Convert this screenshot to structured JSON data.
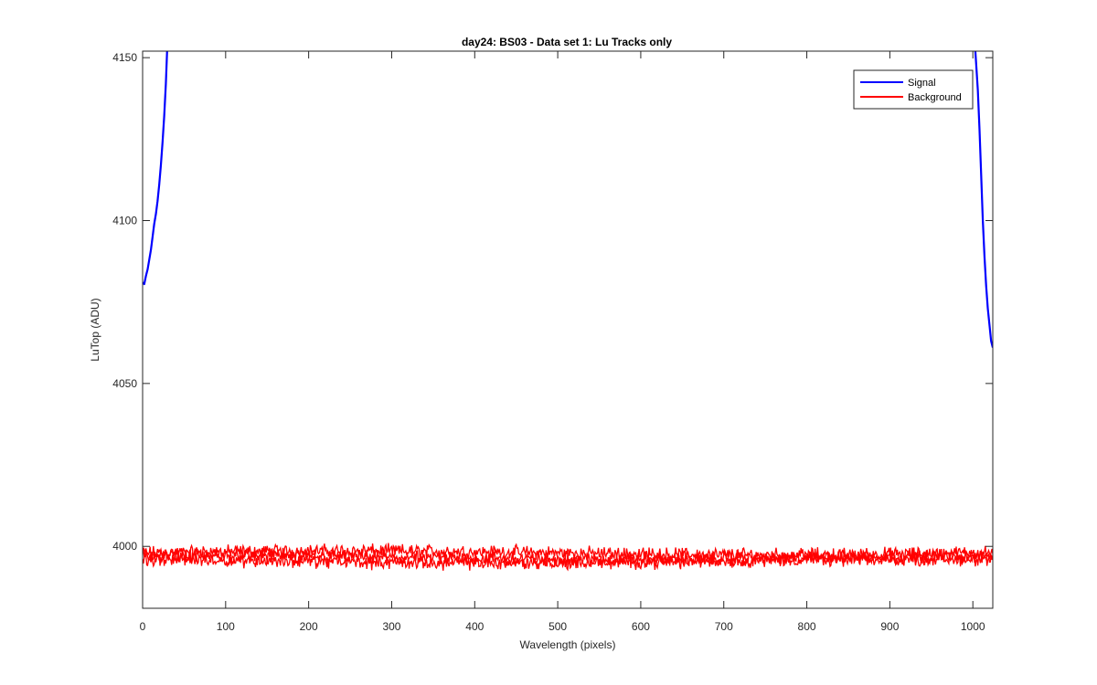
{
  "chart_data": {
    "type": "line",
    "title": "day24: BS03 - Data set 1: Lu Tracks only",
    "xlabel": "Wavelength (pixels)",
    "ylabel": "LuTop (ADU)",
    "xlim": [
      0,
      1024
    ],
    "ylim": [
      3981,
      4152
    ],
    "xticks": [
      0,
      100,
      200,
      300,
      400,
      500,
      600,
      700,
      800,
      900,
      1000
    ],
    "yticks": [
      4000,
      4050,
      4100,
      4150
    ],
    "grid": false,
    "legend_position": "top-right",
    "series": [
      {
        "name": "Signal",
        "color": "#0000ff",
        "segments": [
          [
            [
              0,
              4081
            ],
            [
              2,
              4080.5
            ],
            [
              4,
              4083
            ],
            [
              6,
              4085
            ],
            [
              8,
              4088
            ],
            [
              10,
              4091
            ],
            [
              12,
              4095
            ],
            [
              14,
              4099
            ],
            [
              16,
              4102
            ],
            [
              18,
              4106
            ],
            [
              20,
              4111
            ],
            [
              22,
              4117
            ],
            [
              24,
              4124
            ],
            [
              26,
              4132
            ],
            [
              28,
              4142
            ],
            [
              29.5,
              4152
            ]
          ],
          [
            [
              1003,
              4152
            ],
            [
              1004,
              4148
            ],
            [
              1006,
              4140
            ],
            [
              1008,
              4128
            ],
            [
              1010,
              4114
            ],
            [
              1012,
              4100
            ],
            [
              1014,
              4089
            ],
            [
              1016,
              4080
            ],
            [
              1018,
              4073
            ],
            [
              1020,
              4068
            ],
            [
              1022,
              4063
            ],
            [
              1024,
              4061
            ]
          ]
        ]
      },
      {
        "name": "Background",
        "color": "#ff0000",
        "noise_traces": [
          {
            "base": 3998.0,
            "amplitude": 1.6
          },
          {
            "base": 3996.5,
            "amplitude": 1.6
          },
          {
            "base": 3995.5,
            "amplitude": 1.6
          }
        ]
      }
    ]
  }
}
